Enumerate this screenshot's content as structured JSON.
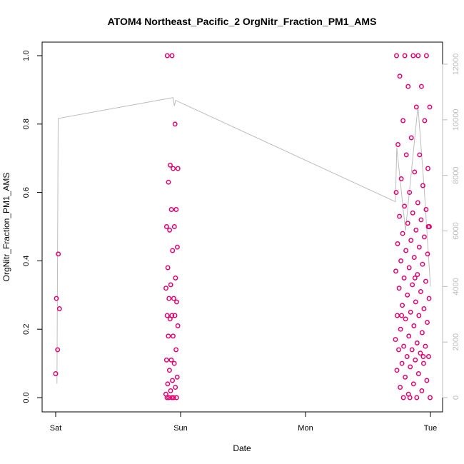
{
  "chart_data": {
    "type": "scatter",
    "title": "ATOM4 Northeast_Pacific_2 OrgNitr_Fraction_PM1_AMS",
    "xlabel": "Date",
    "ylabel": "OrgNitr_Fraction_PM1_AMS",
    "x_ticks": [
      "Sat",
      "Sun",
      "Mon",
      "Tue"
    ],
    "x_domain_days": [
      0,
      3
    ],
    "ylim": [
      0,
      1
    ],
    "y_ticks": [
      "0.0",
      "0.2",
      "0.4",
      "0.6",
      "0.8",
      "1.0"
    ],
    "y2lim": [
      0,
      12000
    ],
    "y2_ticks": [
      "0",
      "2000",
      "4000",
      "6000",
      "8000",
      "10000",
      "12000"
    ],
    "colors": {
      "points": "#e0006e",
      "line": "#bdbdbd",
      "axis": "#000000",
      "axis_right": "#bbbbbb"
    },
    "series": [
      {
        "marker": "circle",
        "clusters": [
          {
            "x_range": [
              0.0,
              0.04
            ],
            "y": [
              0.07,
              0.14,
              0.26,
              0.29,
              0.42
            ]
          },
          {
            "x_range": [
              0.88,
              0.98
            ],
            "y": [
              0.0,
              0.0,
              0.0,
              0.0,
              0.0,
              0.01,
              0.02,
              0.03,
              0.04,
              0.05,
              0.06,
              0.08,
              0.1,
              0.11,
              0.11,
              0.14,
              0.18,
              0.18,
              0.21,
              0.23,
              0.24,
              0.24,
              0.24,
              0.28,
              0.29,
              0.29,
              0.32,
              0.33,
              0.35,
              0.38,
              0.43,
              0.44,
              0.49,
              0.5,
              0.5,
              0.55,
              0.55,
              0.63,
              0.67,
              0.67,
              0.68,
              0.8,
              1.0,
              1.0
            ]
          },
          {
            "x_range": [
              2.72,
              3.0
            ],
            "y": [
              0.0,
              0.0,
              0.0,
              0.01,
              0.02,
              0.03,
              0.04,
              0.05,
              0.06,
              0.07,
              0.08,
              0.09,
              0.1,
              0.1,
              0.11,
              0.12,
              0.12,
              0.13,
              0.14,
              0.14,
              0.15,
              0.15,
              0.16,
              0.17,
              0.18,
              0.19,
              0.2,
              0.21,
              0.22,
              0.23,
              0.24,
              0.24,
              0.25,
              0.26,
              0.27,
              0.28,
              0.29,
              0.3,
              0.31,
              0.32,
              0.33,
              0.34,
              0.35,
              0.36,
              0.37,
              0.38,
              0.39,
              0.4,
              0.41,
              0.42,
              0.43,
              0.44,
              0.45,
              0.46,
              0.47,
              0.48,
              0.49,
              0.5,
              0.51,
              0.52,
              0.53,
              0.54,
              0.55,
              0.56,
              0.57,
              0.6,
              0.6,
              0.62,
              0.64,
              0.66,
              0.67,
              0.71,
              0.71,
              0.74,
              0.76,
              0.81,
              0.81,
              0.85,
              0.85,
              0.91,
              0.91,
              0.94,
              1.0,
              1.0,
              1.0,
              1.0,
              1.0,
              0.0,
              0.12,
              0.24,
              0.35,
              0.5
            ]
          }
        ]
      },
      {
        "axis": "right",
        "style": "line",
        "points": [
          [
            0.01,
            500
          ],
          [
            0.02,
            10050
          ],
          [
            0.94,
            10800
          ],
          [
            0.95,
            10500
          ],
          [
            0.96,
            10700
          ],
          [
            2.72,
            7050
          ],
          [
            2.73,
            9000
          ],
          [
            2.8,
            6000
          ],
          [
            2.9,
            10500
          ],
          [
            2.95,
            7500
          ],
          [
            3.0,
            4000
          ]
        ]
      }
    ]
  }
}
